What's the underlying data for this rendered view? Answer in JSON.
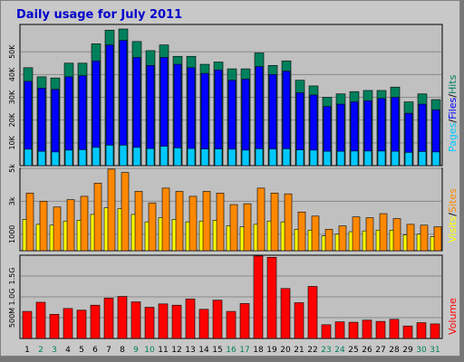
{
  "chart_data": {
    "type": "bar",
    "title": "Daily usage for July 2011",
    "colors": {
      "hits": "#00805c",
      "files": "#0000ff",
      "pages": "#00c8ff",
      "visits": "#ffff00",
      "sites": "#ff8800",
      "volume": "#ff0000",
      "weekend": "#00805c",
      "weekday": "#000000"
    },
    "days": [
      "1",
      "2",
      "3",
      "4",
      "5",
      "6",
      "7",
      "8",
      "9",
      "10",
      "11",
      "12",
      "13",
      "14",
      "15",
      "16",
      "17",
      "18",
      "19",
      "20",
      "21",
      "22",
      "23",
      "24",
      "25",
      "26",
      "27",
      "28",
      "29",
      "30",
      "31"
    ],
    "weekend_days": [
      "2",
      "3",
      "9",
      "10",
      "16",
      "17",
      "23",
      "24",
      "30",
      "31"
    ],
    "hits_panel": {
      "right_label_parts": [
        "Pages",
        "Files",
        "Hits"
      ],
      "ticks": [
        "10K",
        "20K",
        "30K",
        "40K",
        "50K"
      ],
      "tick_values": [
        10000,
        20000,
        30000,
        40000,
        50000
      ],
      "ylim": [
        0,
        62000
      ],
      "series": [
        {
          "name": "Hits",
          "values": [
            43000,
            39000,
            38500,
            45000,
            45000,
            53500,
            59500,
            60000,
            54500,
            50500,
            53000,
            48000,
            48000,
            44500,
            45500,
            42500,
            42500,
            49500,
            44000,
            46000,
            37500,
            35000,
            30000,
            31500,
            32500,
            33000,
            33000,
            34500,
            28000,
            31500,
            29000
          ]
        },
        {
          "name": "Files",
          "values": [
            37000,
            34000,
            33500,
            39000,
            39500,
            46000,
            53000,
            55000,
            47500,
            44000,
            47500,
            44500,
            43000,
            40500,
            42000,
            37500,
            38000,
            43500,
            40000,
            41500,
            32000,
            31000,
            26000,
            27000,
            28000,
            28500,
            29500,
            30000,
            23000,
            27000,
            24500
          ]
        },
        {
          "name": "Pages",
          "values": [
            7200,
            6300,
            6000,
            6800,
            7000,
            8000,
            9000,
            9000,
            8000,
            7500,
            8500,
            7800,
            7500,
            7300,
            7300,
            7200,
            6800,
            7400,
            7300,
            7400,
            6900,
            6800,
            6300,
            6300,
            6400,
            6400,
            6400,
            6300,
            5800,
            6200,
            6000
          ]
        }
      ]
    },
    "visits_panel": {
      "right_label_parts": [
        "Visits",
        "Sites"
      ],
      "ticks": [
        "1000",
        "3k",
        "5k"
      ],
      "tick_values": [
        1000,
        3000,
        5000
      ],
      "ylim": [
        0,
        5000
      ],
      "series": [
        {
          "name": "Visits",
          "values": [
            1900,
            1600,
            1550,
            1800,
            1850,
            2200,
            2600,
            2550,
            2200,
            1750,
            2000,
            1900,
            1750,
            1800,
            1850,
            1500,
            1450,
            1600,
            1800,
            1750,
            1300,
            1250,
            900,
            1000,
            1150,
            1200,
            1250,
            1250,
            950,
            1000,
            850
          ]
        },
        {
          "name": "Sites",
          "values": [
            3500,
            3000,
            2650,
            3100,
            3300,
            4100,
            4950,
            4750,
            3600,
            2900,
            3800,
            3600,
            3300,
            3600,
            3500,
            2800,
            2850,
            3800,
            3500,
            3450,
            2350,
            2100,
            1300,
            1500,
            2050,
            2000,
            2250,
            1950,
            1600,
            1550,
            1450
          ]
        }
      ]
    },
    "volume_panel": {
      "right_label_parts": [
        "Volume"
      ],
      "ticks": [
        "500M",
        "1.0G",
        "1.5G"
      ],
      "tick_values": [
        500,
        1000,
        1500
      ],
      "ylim": [
        0,
        2000
      ],
      "series": [
        {
          "name": "Volume",
          "values": [
            650,
            870,
            580,
            720,
            680,
            800,
            970,
            1010,
            880,
            750,
            830,
            800,
            950,
            700,
            920,
            650,
            840,
            1980,
            1950,
            1200,
            860,
            1250,
            330,
            400,
            390,
            440,
            410,
            460,
            300,
            380,
            350
          ]
        }
      ]
    }
  }
}
